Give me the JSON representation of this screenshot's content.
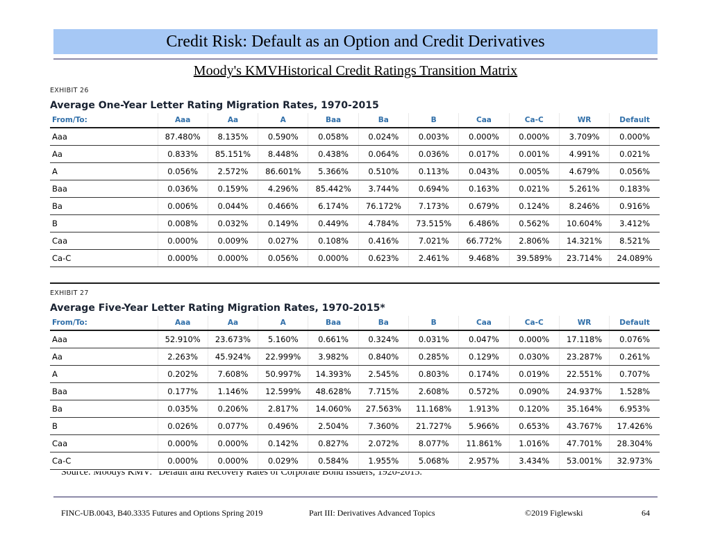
{
  "slide": {
    "title": "Credit Risk: Default as an Option and Credit Derivatives",
    "subtitle": "Moody's KMVHistorical Credit Ratings Transition Matrix",
    "source": "Source:  Moodys KMV: \"Default and Recovery Rates of Corporate Bond Issuers, 1920-2015.\""
  },
  "exhibits": [
    {
      "label": "EXHIBIT 26",
      "title": "Average One-Year Letter Rating Migration Rates, 1970-2015",
      "headers": [
        "From/To:",
        "Aaa",
        "Aa",
        "A",
        "Baa",
        "Ba",
        "B",
        "Caa",
        "Ca-C",
        "WR",
        "Default"
      ],
      "rows": [
        [
          "Aaa",
          "87.480%",
          "8.135%",
          "0.590%",
          "0.058%",
          "0.024%",
          "0.003%",
          "0.000%",
          "0.000%",
          "3.709%",
          "0.000%"
        ],
        [
          "Aa",
          "0.833%",
          "85.151%",
          "8.448%",
          "0.438%",
          "0.064%",
          "0.036%",
          "0.017%",
          "0.001%",
          "4.991%",
          "0.021%"
        ],
        [
          "A",
          "0.056%",
          "2.572%",
          "86.601%",
          "5.366%",
          "0.510%",
          "0.113%",
          "0.043%",
          "0.005%",
          "4.679%",
          "0.056%"
        ],
        [
          "Baa",
          "0.036%",
          "0.159%",
          "4.296%",
          "85.442%",
          "3.744%",
          "0.694%",
          "0.163%",
          "0.021%",
          "5.261%",
          "0.183%"
        ],
        [
          "Ba",
          "0.006%",
          "0.044%",
          "0.466%",
          "6.174%",
          "76.172%",
          "7.173%",
          "0.679%",
          "0.124%",
          "8.246%",
          "0.916%"
        ],
        [
          "B",
          "0.008%",
          "0.032%",
          "0.149%",
          "0.449%",
          "4.784%",
          "73.515%",
          "6.486%",
          "0.562%",
          "10.604%",
          "3.412%"
        ],
        [
          "Caa",
          "0.000%",
          "0.009%",
          "0.027%",
          "0.108%",
          "0.416%",
          "7.021%",
          "66.772%",
          "2.806%",
          "14.321%",
          "8.521%"
        ],
        [
          "Ca-C",
          "0.000%",
          "0.000%",
          "0.056%",
          "0.000%",
          "0.623%",
          "2.461%",
          "9.468%",
          "39.589%",
          "23.714%",
          "24.089%"
        ]
      ]
    },
    {
      "label": "EXHIBIT 27",
      "title": "Average Five-Year Letter Rating Migration Rates, 1970-2015*",
      "headers": [
        "From/To:",
        "Aaa",
        "Aa",
        "A",
        "Baa",
        "Ba",
        "B",
        "Caa",
        "Ca-C",
        "WR",
        "Default"
      ],
      "rows": [
        [
          "Aaa",
          "52.910%",
          "23.673%",
          "5.160%",
          "0.661%",
          "0.324%",
          "0.031%",
          "0.047%",
          "0.000%",
          "17.118%",
          "0.076%"
        ],
        [
          "Aa",
          "2.263%",
          "45.924%",
          "22.999%",
          "3.982%",
          "0.840%",
          "0.285%",
          "0.129%",
          "0.030%",
          "23.287%",
          "0.261%"
        ],
        [
          "A",
          "0.202%",
          "7.608%",
          "50.997%",
          "14.393%",
          "2.545%",
          "0.803%",
          "0.174%",
          "0.019%",
          "22.551%",
          "0.707%"
        ],
        [
          "Baa",
          "0.177%",
          "1.146%",
          "12.599%",
          "48.628%",
          "7.715%",
          "2.608%",
          "0.572%",
          "0.090%",
          "24.937%",
          "1.528%"
        ],
        [
          "Ba",
          "0.035%",
          "0.206%",
          "2.817%",
          "14.060%",
          "27.563%",
          "11.168%",
          "1.913%",
          "0.120%",
          "35.164%",
          "6.953%"
        ],
        [
          "B",
          "0.026%",
          "0.077%",
          "0.496%",
          "2.504%",
          "7.360%",
          "21.727%",
          "5.966%",
          "0.653%",
          "43.767%",
          "17.426%"
        ],
        [
          "Caa",
          "0.000%",
          "0.000%",
          "0.142%",
          "0.827%",
          "2.072%",
          "8.077%",
          "11.861%",
          "1.016%",
          "47.701%",
          "28.304%"
        ],
        [
          "Ca-C",
          "0.000%",
          "0.000%",
          "0.029%",
          "0.584%",
          "1.955%",
          "5.068%",
          "2.957%",
          "3.434%",
          "53.001%",
          "32.973%"
        ]
      ]
    }
  ],
  "footer": {
    "course": "FINC-UB.0043, B40.3335  Futures and Options  Spring 2019",
    "part": "Part III: Derivatives Advanced Topics",
    "copyright": "©2019 Figlewski",
    "page": "64"
  },
  "colors": {
    "title_bar": "#a6c8f5",
    "rule": "#8d8aa8",
    "table_header": "#2f6ea8"
  }
}
